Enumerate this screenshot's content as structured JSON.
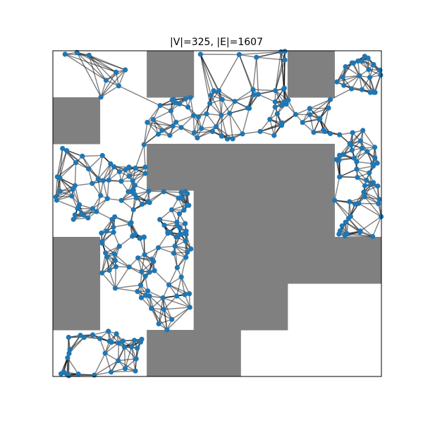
{
  "figure": {
    "title": "|V|=325, |E|=1607"
  },
  "colors": {
    "background": "#ffffff",
    "obstacle": "#808080",
    "edge": "#000000",
    "node": "#1f77b4",
    "frame": "#000000"
  },
  "graph": {
    "vertex_count": 325,
    "edge_count": 1607,
    "grid_cells": 7,
    "obstacle_cells": [
      [
        2,
        0
      ],
      [
        5,
        0
      ],
      [
        0,
        1
      ],
      [
        2,
        2
      ],
      [
        3,
        2
      ],
      [
        4,
        2
      ],
      [
        5,
        2
      ],
      [
        3,
        3
      ],
      [
        4,
        3
      ],
      [
        5,
        3
      ],
      [
        0,
        4
      ],
      [
        3,
        4
      ],
      [
        4,
        4
      ],
      [
        5,
        4
      ],
      [
        6,
        4
      ],
      [
        0,
        5
      ],
      [
        3,
        5
      ],
      [
        4,
        5
      ],
      [
        2,
        6
      ],
      [
        3,
        6
      ]
    ],
    "free_regions": [
      [
        0.0,
        1.0,
        0.0,
        0.22
      ],
      [
        2.9,
        5.3,
        0.0,
        0.25
      ],
      [
        5.8,
        7.0,
        0.0,
        0.9
      ],
      [
        1.0,
        2.0,
        0.4,
        1.05
      ],
      [
        2.0,
        6.0,
        0.8,
        1.9
      ],
      [
        0.0,
        2.2,
        1.9,
        3.8
      ],
      [
        2.0,
        3.2,
        2.9,
        3.6
      ],
      [
        1.0,
        2.9,
        3.6,
        5.2
      ],
      [
        2.4,
        3.3,
        3.0,
        4.4
      ],
      [
        1.8,
        3.0,
        5.0,
        6.0
      ],
      [
        0.0,
        1.9,
        6.0,
        7.0
      ],
      [
        6.0,
        7.0,
        1.7,
        4.0
      ]
    ]
  }
}
